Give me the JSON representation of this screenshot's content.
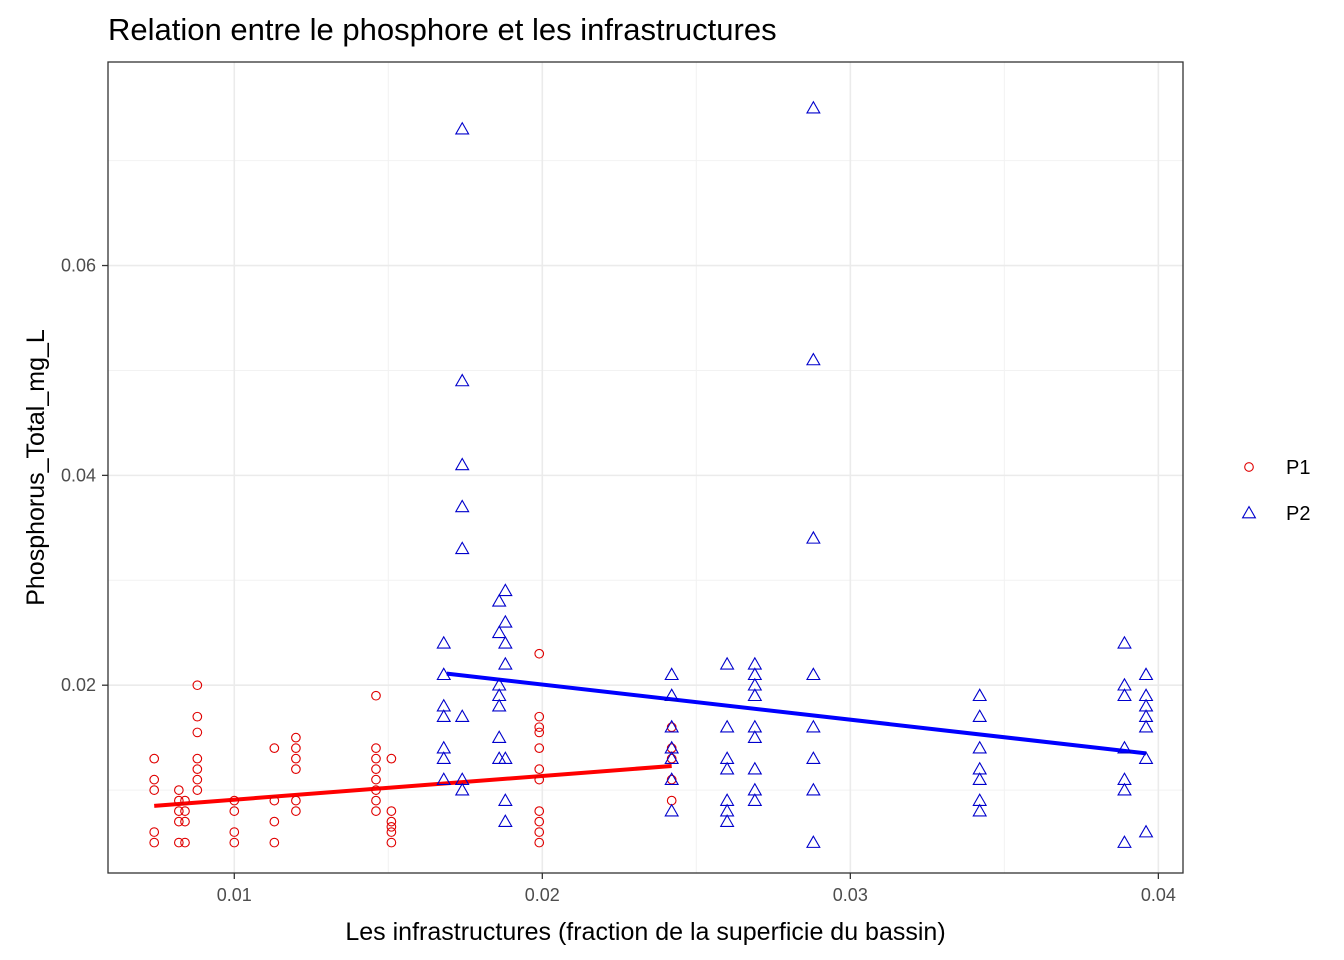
{
  "chart_data": {
    "type": "scatter",
    "title": "Relation entre le phosphore et les infrastructures",
    "xlabel": "Les infrastructures (fraction de la superficie du bassin)",
    "ylabel": "Phosphorus_Total_mg_L",
    "xlim": [
      0.0059,
      0.0408
    ],
    "ylim": [
      0.0021,
      0.0794
    ],
    "x_ticks": [
      0.01,
      0.02,
      0.03,
      0.04
    ],
    "x_tick_labels": [
      "0.01",
      "0.02",
      "0.03",
      "0.04"
    ],
    "y_ticks": [
      0.02,
      0.04,
      0.06
    ],
    "y_tick_labels": [
      "0.02",
      "0.04",
      "0.06"
    ],
    "grid": true,
    "legend_placement": "right",
    "series": [
      {
        "name": "P1",
        "marker": "circle",
        "color": "#e00000",
        "fit_color": "#ff0000",
        "fit_line": [
          [
            0.0074,
            0.0085
          ],
          [
            0.0242,
            0.0123
          ]
        ],
        "points": [
          [
            0.0074,
            0.013
          ],
          [
            0.0074,
            0.011
          ],
          [
            0.0074,
            0.01
          ],
          [
            0.0074,
            0.006
          ],
          [
            0.0074,
            0.005
          ],
          [
            0.0082,
            0.01
          ],
          [
            0.0082,
            0.009
          ],
          [
            0.0082,
            0.008
          ],
          [
            0.0082,
            0.007
          ],
          [
            0.0082,
            0.005
          ],
          [
            0.0084,
            0.009
          ],
          [
            0.0084,
            0.008
          ],
          [
            0.0084,
            0.007
          ],
          [
            0.0084,
            0.005
          ],
          [
            0.0088,
            0.02
          ],
          [
            0.0088,
            0.017
          ],
          [
            0.0088,
            0.0155
          ],
          [
            0.0088,
            0.013
          ],
          [
            0.0088,
            0.012
          ],
          [
            0.0088,
            0.011
          ],
          [
            0.0088,
            0.01
          ],
          [
            0.01,
            0.009
          ],
          [
            0.01,
            0.008
          ],
          [
            0.01,
            0.006
          ],
          [
            0.01,
            0.005
          ],
          [
            0.0113,
            0.014
          ],
          [
            0.0113,
            0.009
          ],
          [
            0.0113,
            0.007
          ],
          [
            0.0113,
            0.005
          ],
          [
            0.012,
            0.015
          ],
          [
            0.012,
            0.014
          ],
          [
            0.012,
            0.013
          ],
          [
            0.012,
            0.012
          ],
          [
            0.012,
            0.009
          ],
          [
            0.012,
            0.008
          ],
          [
            0.0146,
            0.019
          ],
          [
            0.0146,
            0.014
          ],
          [
            0.0146,
            0.013
          ],
          [
            0.0146,
            0.012
          ],
          [
            0.0146,
            0.011
          ],
          [
            0.0146,
            0.01
          ],
          [
            0.0146,
            0.009
          ],
          [
            0.0146,
            0.008
          ],
          [
            0.0151,
            0.013
          ],
          [
            0.0151,
            0.008
          ],
          [
            0.0151,
            0.007
          ],
          [
            0.0151,
            0.0065
          ],
          [
            0.0151,
            0.006
          ],
          [
            0.0151,
            0.005
          ],
          [
            0.0199,
            0.023
          ],
          [
            0.0199,
            0.017
          ],
          [
            0.0199,
            0.016
          ],
          [
            0.0199,
            0.0155
          ],
          [
            0.0199,
            0.014
          ],
          [
            0.0199,
            0.012
          ],
          [
            0.0199,
            0.011
          ],
          [
            0.0199,
            0.008
          ],
          [
            0.0199,
            0.007
          ],
          [
            0.0199,
            0.006
          ],
          [
            0.0199,
            0.005
          ],
          [
            0.0242,
            0.016
          ],
          [
            0.0242,
            0.014
          ],
          [
            0.0242,
            0.013
          ],
          [
            0.0242,
            0.011
          ],
          [
            0.0242,
            0.009
          ]
        ]
      },
      {
        "name": "P2",
        "marker": "triangle",
        "color": "#0000cc",
        "fit_color": "#0000ff",
        "fit_line": [
          [
            0.0169,
            0.0211
          ],
          [
            0.0396,
            0.0135
          ]
        ],
        "points": [
          [
            0.0168,
            0.024
          ],
          [
            0.0168,
            0.021
          ],
          [
            0.0168,
            0.018
          ],
          [
            0.0168,
            0.017
          ],
          [
            0.0168,
            0.014
          ],
          [
            0.0168,
            0.013
          ],
          [
            0.0168,
            0.011
          ],
          [
            0.0174,
            0.073
          ],
          [
            0.0174,
            0.049
          ],
          [
            0.0174,
            0.041
          ],
          [
            0.0174,
            0.037
          ],
          [
            0.0174,
            0.033
          ],
          [
            0.0174,
            0.017
          ],
          [
            0.0174,
            0.011
          ],
          [
            0.0174,
            0.01
          ],
          [
            0.0186,
            0.028
          ],
          [
            0.0186,
            0.025
          ],
          [
            0.0186,
            0.02
          ],
          [
            0.0186,
            0.019
          ],
          [
            0.0186,
            0.018
          ],
          [
            0.0186,
            0.015
          ],
          [
            0.0186,
            0.013
          ],
          [
            0.0188,
            0.029
          ],
          [
            0.0188,
            0.026
          ],
          [
            0.0188,
            0.024
          ],
          [
            0.0188,
            0.022
          ],
          [
            0.0188,
            0.013
          ],
          [
            0.0188,
            0.009
          ],
          [
            0.0188,
            0.007
          ],
          [
            0.0242,
            0.021
          ],
          [
            0.0242,
            0.019
          ],
          [
            0.0242,
            0.016
          ],
          [
            0.0242,
            0.014
          ],
          [
            0.0242,
            0.013
          ],
          [
            0.0242,
            0.011
          ],
          [
            0.0242,
            0.008
          ],
          [
            0.026,
            0.022
          ],
          [
            0.026,
            0.016
          ],
          [
            0.026,
            0.013
          ],
          [
            0.026,
            0.012
          ],
          [
            0.026,
            0.009
          ],
          [
            0.026,
            0.008
          ],
          [
            0.026,
            0.007
          ],
          [
            0.0269,
            0.022
          ],
          [
            0.0269,
            0.021
          ],
          [
            0.0269,
            0.02
          ],
          [
            0.0269,
            0.019
          ],
          [
            0.0269,
            0.016
          ],
          [
            0.0269,
            0.015
          ],
          [
            0.0269,
            0.012
          ],
          [
            0.0269,
            0.01
          ],
          [
            0.0269,
            0.009
          ],
          [
            0.0288,
            0.075
          ],
          [
            0.0288,
            0.051
          ],
          [
            0.0288,
            0.034
          ],
          [
            0.0288,
            0.021
          ],
          [
            0.0288,
            0.016
          ],
          [
            0.0288,
            0.013
          ],
          [
            0.0288,
            0.01
          ],
          [
            0.0288,
            0.005
          ],
          [
            0.0342,
            0.019
          ],
          [
            0.0342,
            0.017
          ],
          [
            0.0342,
            0.014
          ],
          [
            0.0342,
            0.012
          ],
          [
            0.0342,
            0.011
          ],
          [
            0.0342,
            0.009
          ],
          [
            0.0342,
            0.008
          ],
          [
            0.0389,
            0.024
          ],
          [
            0.0389,
            0.02
          ],
          [
            0.0389,
            0.019
          ],
          [
            0.0389,
            0.014
          ],
          [
            0.0389,
            0.011
          ],
          [
            0.0389,
            0.01
          ],
          [
            0.0389,
            0.005
          ],
          [
            0.0396,
            0.021
          ],
          [
            0.0396,
            0.019
          ],
          [
            0.0396,
            0.018
          ],
          [
            0.0396,
            0.017
          ],
          [
            0.0396,
            0.016
          ],
          [
            0.0396,
            0.013
          ],
          [
            0.0396,
            0.006
          ]
        ]
      }
    ]
  }
}
